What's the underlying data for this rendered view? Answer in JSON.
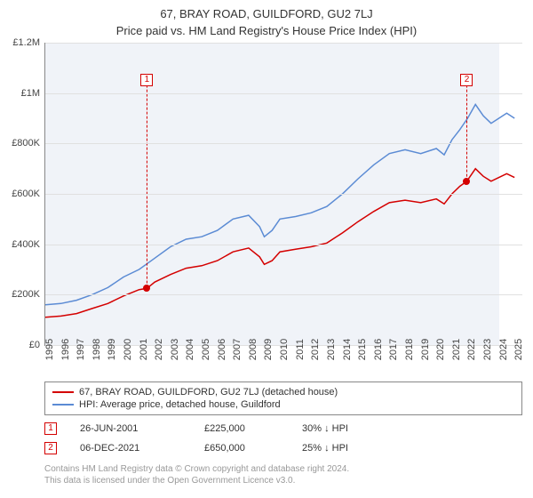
{
  "title_main": "67, BRAY ROAD, GUILDFORD, GU2 7LJ",
  "title_sub": "Price paid vs. HM Land Registry's House Price Index (HPI)",
  "chart": {
    "type": "line",
    "background_color": "#ffffff",
    "plot_band_color": "#f0f3f8",
    "grid_color": "#e0e0e0",
    "axis_color": "#888888",
    "plot_band_start_year": 1995,
    "plot_band_end_year": 2024,
    "x": {
      "min": 1995,
      "max": 2025.5,
      "ticks": [
        1995,
        1996,
        1997,
        1998,
        1999,
        2000,
        2001,
        2002,
        2003,
        2004,
        2005,
        2006,
        2007,
        2008,
        2009,
        2010,
        2011,
        2012,
        2013,
        2014,
        2015,
        2016,
        2017,
        2018,
        2019,
        2020,
        2021,
        2022,
        2023,
        2024,
        2025
      ]
    },
    "y": {
      "min": 0,
      "max": 1200000,
      "ticks": [
        {
          "v": 0,
          "label": "£0"
        },
        {
          "v": 200000,
          "label": "£200K"
        },
        {
          "v": 400000,
          "label": "£400K"
        },
        {
          "v": 600000,
          "label": "£600K"
        },
        {
          "v": 800000,
          "label": "£800K"
        },
        {
          "v": 1000000,
          "label": "£1M"
        },
        {
          "v": 1200000,
          "label": "£1.2M"
        }
      ]
    },
    "series": [
      {
        "name": "67, BRAY ROAD, GUILDFORD, GU2 7LJ (detached house)",
        "color": "#d40000",
        "line_width": 1.5,
        "points": [
          [
            1995,
            110000
          ],
          [
            1996,
            115000
          ],
          [
            1997,
            125000
          ],
          [
            1998,
            145000
          ],
          [
            1999,
            165000
          ],
          [
            2000,
            195000
          ],
          [
            2001,
            220000
          ],
          [
            2001.5,
            225000
          ],
          [
            2002,
            250000
          ],
          [
            2003,
            280000
          ],
          [
            2004,
            305000
          ],
          [
            2005,
            315000
          ],
          [
            2006,
            335000
          ],
          [
            2007,
            370000
          ],
          [
            2008,
            385000
          ],
          [
            2008.7,
            350000
          ],
          [
            2009,
            320000
          ],
          [
            2009.5,
            335000
          ],
          [
            2010,
            370000
          ],
          [
            2011,
            380000
          ],
          [
            2012,
            390000
          ],
          [
            2013,
            405000
          ],
          [
            2014,
            445000
          ],
          [
            2015,
            490000
          ],
          [
            2016,
            530000
          ],
          [
            2017,
            565000
          ],
          [
            2018,
            575000
          ],
          [
            2019,
            565000
          ],
          [
            2020,
            580000
          ],
          [
            2020.5,
            560000
          ],
          [
            2021,
            600000
          ],
          [
            2021.5,
            630000
          ],
          [
            2021.95,
            650000
          ],
          [
            2022.5,
            700000
          ],
          [
            2023,
            670000
          ],
          [
            2023.5,
            650000
          ],
          [
            2024,
            665000
          ],
          [
            2024.5,
            680000
          ],
          [
            2025,
            665000
          ]
        ]
      },
      {
        "name": "HPI: Average price, detached house, Guildford",
        "color": "#5b8bd4",
        "line_width": 1.5,
        "points": [
          [
            1995,
            160000
          ],
          [
            1996,
            165000
          ],
          [
            1997,
            178000
          ],
          [
            1998,
            200000
          ],
          [
            1999,
            228000
          ],
          [
            2000,
            270000
          ],
          [
            2001,
            300000
          ],
          [
            2002,
            345000
          ],
          [
            2003,
            390000
          ],
          [
            2004,
            420000
          ],
          [
            2005,
            430000
          ],
          [
            2006,
            455000
          ],
          [
            2007,
            500000
          ],
          [
            2008,
            515000
          ],
          [
            2008.7,
            470000
          ],
          [
            2009,
            430000
          ],
          [
            2009.5,
            455000
          ],
          [
            2010,
            500000
          ],
          [
            2011,
            510000
          ],
          [
            2012,
            525000
          ],
          [
            2013,
            550000
          ],
          [
            2014,
            600000
          ],
          [
            2015,
            660000
          ],
          [
            2016,
            715000
          ],
          [
            2017,
            760000
          ],
          [
            2018,
            775000
          ],
          [
            2019,
            760000
          ],
          [
            2020,
            780000
          ],
          [
            2020.5,
            755000
          ],
          [
            2021,
            815000
          ],
          [
            2021.5,
            855000
          ],
          [
            2022,
            900000
          ],
          [
            2022.5,
            955000
          ],
          [
            2023,
            910000
          ],
          [
            2023.5,
            880000
          ],
          [
            2024,
            900000
          ],
          [
            2024.5,
            920000
          ],
          [
            2025,
            900000
          ]
        ]
      }
    ],
    "markers": [
      {
        "n": "1",
        "year": 2001.5,
        "value": 225000,
        "color": "#d40000",
        "callout_y": 1060000
      },
      {
        "n": "2",
        "year": 2021.95,
        "value": 650000,
        "color": "#d40000",
        "callout_y": 1060000
      }
    ]
  },
  "legend": {
    "items": [
      {
        "label": "67, BRAY ROAD, GUILDFORD, GU2 7LJ (detached house)",
        "color": "#d40000"
      },
      {
        "label": "HPI: Average price, detached house, Guildford",
        "color": "#5b8bd4"
      }
    ]
  },
  "transactions": [
    {
      "n": "1",
      "color": "#d40000",
      "date": "26-JUN-2001",
      "price": "£225,000",
      "pct": "30% ↓ HPI"
    },
    {
      "n": "2",
      "color": "#d40000",
      "date": "06-DEC-2021",
      "price": "£650,000",
      "pct": "25% ↓ HPI"
    }
  ],
  "footer": {
    "line1": "Contains HM Land Registry data © Crown copyright and database right 2024.",
    "line2": "This data is licensed under the Open Government Licence v3.0."
  }
}
